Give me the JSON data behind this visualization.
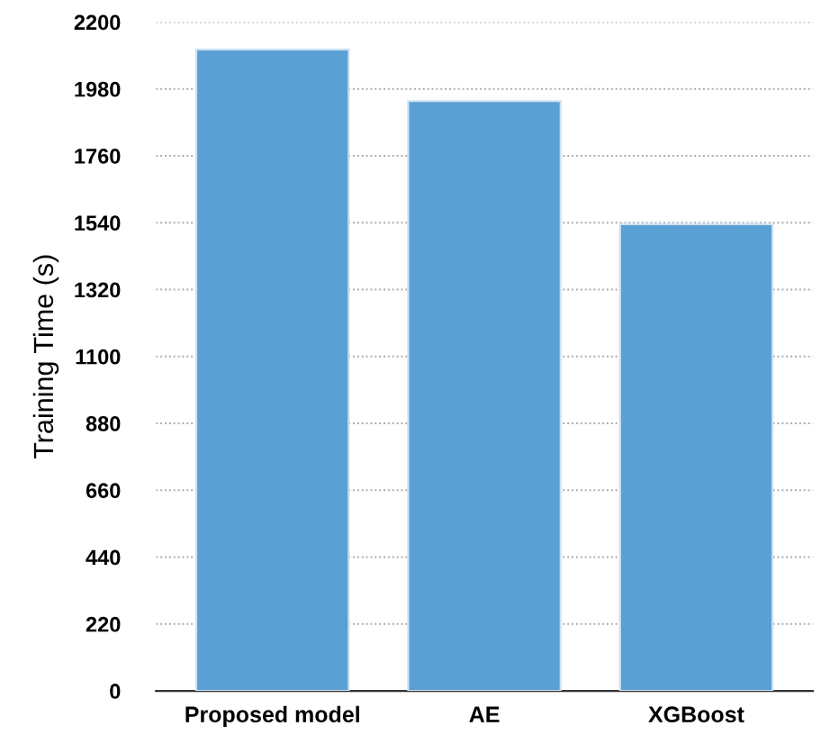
{
  "chart_data": {
    "type": "bar",
    "ylabel": "Training Time (s)",
    "categories": [
      "Proposed model",
      "AE",
      "XGBoost"
    ],
    "values": [
      2110,
      1940,
      1535
    ],
    "color": "#5ba0d4",
    "ylim": [
      0,
      2200
    ],
    "yticks": [
      0,
      220,
      440,
      660,
      880,
      1100,
      1320,
      1540,
      1760,
      1980,
      2200
    ],
    "grid": "y"
  }
}
